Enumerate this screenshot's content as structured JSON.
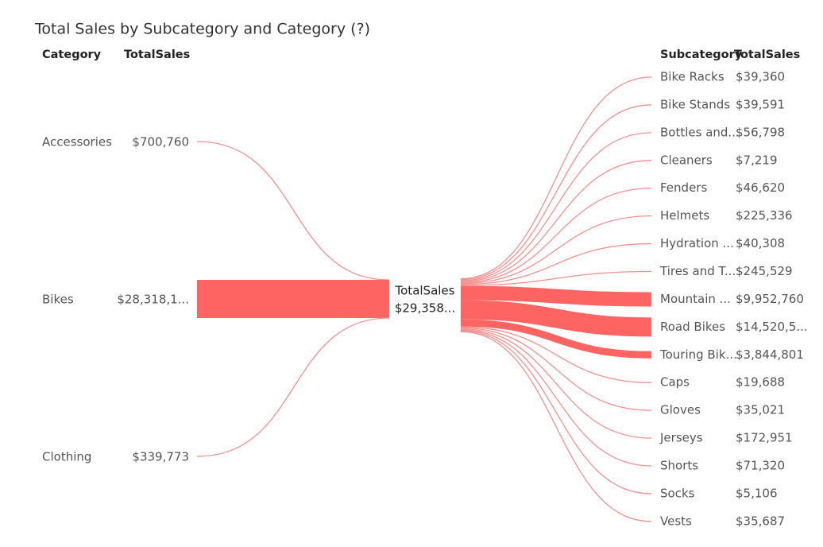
{
  "title": "Total Sales by Subcategory and Category (?)",
  "left_headers": [
    "Category",
    "TotalSales"
  ],
  "left_rows": [
    [
      "Accessories",
      "$700,760"
    ],
    [
      "Bikes",
      "$28,318,1..."
    ],
    [
      "Clothing",
      "$339,773"
    ]
  ],
  "center": {
    "label": "TotalSales",
    "value": "$29,358..."
  },
  "right_headers": [
    "Subcategory",
    "TotalSales"
  ],
  "right_rows": [
    [
      "Bike Racks",
      "$39,360"
    ],
    [
      "Bike Stands",
      "$39,591"
    ],
    [
      "Bottles and...",
      "$56,798"
    ],
    [
      "Cleaners",
      "$7,219"
    ],
    [
      "Fenders",
      "$46,620"
    ],
    [
      "Helmets",
      "$225,336"
    ],
    [
      "Hydration ...",
      "$40,308"
    ],
    [
      "Tires and T...",
      "$245,529"
    ],
    [
      "Mountain ...",
      "$9,952,760"
    ],
    [
      "Road Bikes",
      "$14,520,5..."
    ],
    [
      "Touring Bik...",
      "$3,844,801"
    ],
    [
      "Caps",
      "$19,688"
    ],
    [
      "Gloves",
      "$35,021"
    ],
    [
      "Jerseys",
      "$172,951"
    ],
    [
      "Shorts",
      "$71,320"
    ],
    [
      "Socks",
      "$5,106"
    ],
    [
      "Vests",
      "$35,687"
    ]
  ]
}
